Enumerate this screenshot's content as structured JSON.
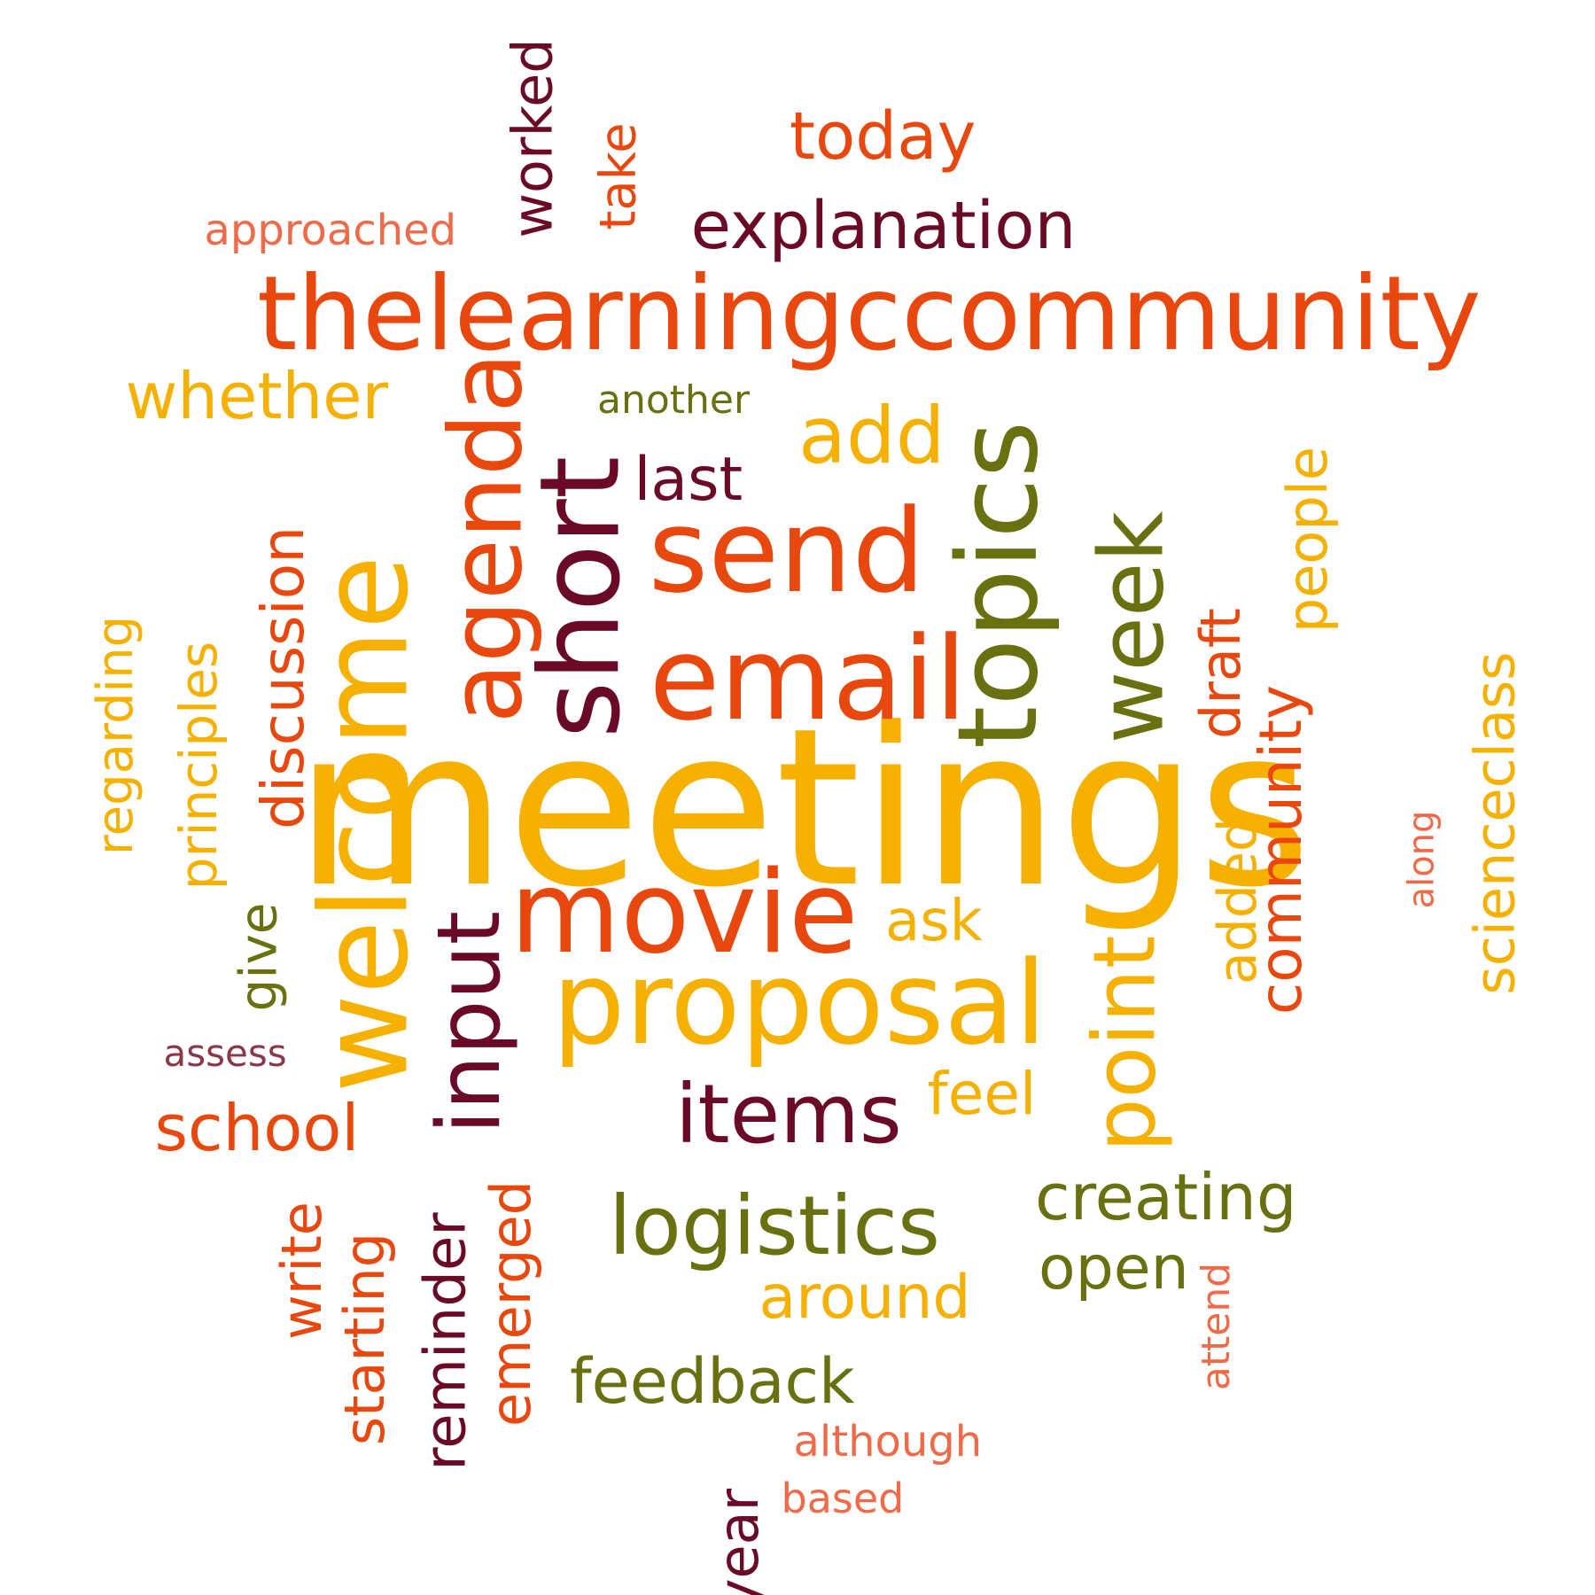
{
  "colors": {
    "orange_red": "#e8480e",
    "yellow_orange": "#f5b000",
    "dark_maroon": "#6b0a26",
    "olive_green": "#687010",
    "salmon": "#ee6a48",
    "dusky_rose": "#8a3848",
    "background": "#ffffff"
  },
  "words": [
    {
      "text": "meetings",
      "color": "yellow_orange",
      "orientation": "horizontal"
    },
    {
      "text": "thelearningccommunity",
      "color": "orange_red",
      "orientation": "horizontal"
    },
    {
      "text": "email",
      "color": "orange_red",
      "orientation": "horizontal"
    },
    {
      "text": "send",
      "color": "orange_red",
      "orientation": "horizontal"
    },
    {
      "text": "proposal",
      "color": "yellow_orange",
      "orientation": "horizontal"
    },
    {
      "text": "movie",
      "color": "orange_red",
      "orientation": "horizontal"
    },
    {
      "text": "welcome",
      "color": "yellow_orange",
      "orientation": "vertical"
    },
    {
      "text": "topics",
      "color": "olive_green",
      "orientation": "vertical"
    },
    {
      "text": "short",
      "color": "dark_maroon",
      "orientation": "vertical"
    },
    {
      "text": "agenda",
      "color": "orange_red",
      "orientation": "vertical"
    },
    {
      "text": "week",
      "color": "olive_green",
      "orientation": "vertical"
    },
    {
      "text": "input",
      "color": "dark_maroon",
      "orientation": "vertical"
    },
    {
      "text": "point",
      "color": "yellow_orange",
      "orientation": "vertical"
    },
    {
      "text": "items",
      "color": "dark_maroon",
      "orientation": "horizontal"
    },
    {
      "text": "logistics",
      "color": "olive_green",
      "orientation": "horizontal"
    },
    {
      "text": "explanation",
      "color": "dark_maroon",
      "orientation": "horizontal"
    },
    {
      "text": "add",
      "color": "yellow_orange",
      "orientation": "horizontal"
    },
    {
      "text": "today",
      "color": "orange_red",
      "orientation": "horizontal"
    },
    {
      "text": "whether",
      "color": "yellow_orange",
      "orientation": "horizontal"
    },
    {
      "text": "creating",
      "color": "olive_green",
      "orientation": "horizontal"
    },
    {
      "text": "feedback",
      "color": "olive_green",
      "orientation": "horizontal"
    },
    {
      "text": "around",
      "color": "yellow_orange",
      "orientation": "horizontal"
    },
    {
      "text": "school",
      "color": "orange_red",
      "orientation": "horizontal"
    },
    {
      "text": "open",
      "color": "olive_green",
      "orientation": "horizontal"
    },
    {
      "text": "last",
      "color": "dark_maroon",
      "orientation": "horizontal"
    },
    {
      "text": "feel",
      "color": "yellow_orange",
      "orientation": "horizontal"
    },
    {
      "text": "ask",
      "color": "yellow_orange",
      "orientation": "horizontal"
    },
    {
      "text": "approached",
      "color": "salmon",
      "orientation": "horizontal"
    },
    {
      "text": "another",
      "color": "olive_green",
      "orientation": "horizontal"
    },
    {
      "text": "although",
      "color": "salmon",
      "orientation": "horizontal"
    },
    {
      "text": "based",
      "color": "salmon",
      "orientation": "horizontal"
    },
    {
      "text": "assess",
      "color": "dusky_rose",
      "orientation": "horizontal"
    },
    {
      "text": "discussion",
      "color": "orange_red",
      "orientation": "vertical"
    },
    {
      "text": "principles",
      "color": "yellow_orange",
      "orientation": "vertical"
    },
    {
      "text": "regarding",
      "color": "yellow_orange",
      "orientation": "vertical"
    },
    {
      "text": "community",
      "color": "orange_red",
      "orientation": "vertical"
    },
    {
      "text": "people",
      "color": "yellow_orange",
      "orientation": "vertical"
    },
    {
      "text": "draft",
      "color": "orange_red",
      "orientation": "vertical"
    },
    {
      "text": "added",
      "color": "yellow_orange",
      "orientation": "vertical"
    },
    {
      "text": "scienceclass",
      "color": "yellow_orange",
      "orientation": "vertical"
    },
    {
      "text": "worked",
      "color": "dark_maroon",
      "orientation": "vertical"
    },
    {
      "text": "take",
      "color": "orange_red",
      "orientation": "vertical"
    },
    {
      "text": "give",
      "color": "olive_green",
      "orientation": "vertical"
    },
    {
      "text": "write",
      "color": "orange_red",
      "orientation": "vertical"
    },
    {
      "text": "starting",
      "color": "orange_red",
      "orientation": "vertical"
    },
    {
      "text": "reminder",
      "color": "dark_maroon",
      "orientation": "vertical"
    },
    {
      "text": "emerged",
      "color": "orange_red",
      "orientation": "vertical"
    },
    {
      "text": "year",
      "color": "dark_maroon",
      "orientation": "vertical"
    },
    {
      "text": "attend",
      "color": "salmon",
      "orientation": "vertical"
    },
    {
      "text": "along",
      "color": "salmon",
      "orientation": "vertical"
    }
  ]
}
